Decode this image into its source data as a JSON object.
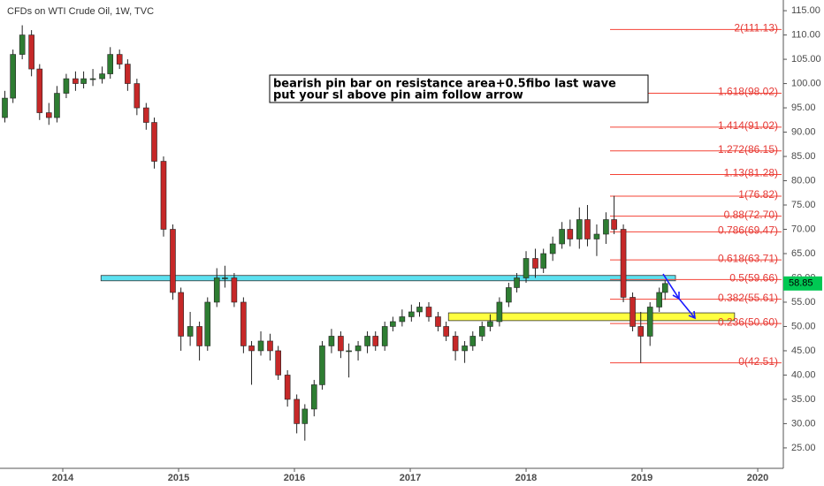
{
  "chart_data": {
    "type": "candlestick",
    "title": "CFDs on WTI Crude Oil, 1W, TVC",
    "annotation": [
      "bearish pin bar on resistance area+0.5fibo last wave",
      "put your sl above pin aim follow arrow"
    ],
    "up_color": "#2e7d32",
    "down_color": "#c62828",
    "last_color": "#00c853",
    "x": [
      2013.5,
      2013.57,
      2013.65,
      2013.73,
      2013.8,
      2013.88,
      2013.95,
      2014.03,
      2014.11,
      2014.18,
      2014.26,
      2014.34,
      2014.41,
      2014.49,
      2014.56,
      2014.64,
      2014.72,
      2014.79,
      2014.87,
      2014.95,
      2015.02,
      2015.1,
      2015.18,
      2015.25,
      2015.33,
      2015.4,
      2015.48,
      2015.56,
      2015.63,
      2015.71,
      2015.79,
      2015.86,
      2015.94,
      2016.02,
      2016.09,
      2016.17,
      2016.24,
      2016.32,
      2016.4,
      2016.47,
      2016.55,
      2016.63,
      2016.7,
      2016.78,
      2016.85,
      2016.93,
      2017.01,
      2017.08,
      2017.16,
      2017.24,
      2017.31,
      2017.39,
      2017.47,
      2017.54,
      2017.62,
      2017.69,
      2017.77,
      2017.85,
      2017.92,
      2018.0,
      2018.08,
      2018.15,
      2018.23,
      2018.31,
      2018.38,
      2018.46,
      2018.53,
      2018.61,
      2018.69,
      2018.76,
      2018.84,
      2018.92,
      2018.99,
      2019.07,
      2019.15,
      2019.2
    ],
    "open": [
      93,
      97,
      106,
      110,
      103,
      94,
      93,
      98,
      101,
      100,
      101,
      101,
      102,
      106,
      104,
      100,
      95,
      92,
      84,
      70,
      57,
      48,
      50,
      46,
      55,
      60,
      60,
      55,
      46,
      45,
      47,
      45,
      40,
      35,
      30,
      33,
      38,
      46,
      48,
      45,
      45,
      46,
      48,
      46,
      50,
      51,
      52,
      53,
      54,
      52,
      50,
      48,
      45,
      46,
      48,
      50,
      51,
      55,
      58,
      60,
      64,
      62,
      65,
      67,
      70,
      68,
      72,
      68,
      69,
      72,
      70,
      56,
      50,
      48,
      54,
      57
    ],
    "high": [
      98.5,
      107,
      112,
      111,
      104,
      96,
      99.5,
      102,
      102.5,
      102.5,
      103,
      103.5,
      107.5,
      107,
      105,
      101,
      96,
      93,
      85,
      71,
      58,
      53,
      51,
      56,
      62,
      62.5,
      61,
      56,
      47,
      49,
      48.5,
      46,
      41,
      36,
      34,
      39,
      47,
      49.5,
      49,
      46.5,
      47,
      49,
      49,
      51,
      52,
      53.5,
      54.5,
      55,
      55,
      53,
      51,
      49,
      47,
      49,
      51,
      52.5,
      56,
      59,
      61,
      65.5,
      66,
      66,
      68.5,
      71.5,
      72,
      74.5,
      75,
      71,
      73.5,
      76.9,
      71,
      57,
      53,
      55,
      58,
      59.5
    ],
    "low": [
      92,
      96,
      105,
      101.5,
      92.5,
      91.5,
      92,
      97,
      98.5,
      99,
      99.5,
      100,
      101,
      103,
      98.5,
      93.5,
      90.5,
      82.5,
      68.5,
      55.5,
      45,
      46,
      43,
      45,
      54,
      58,
      54,
      44.5,
      38,
      44,
      43,
      39,
      33.5,
      28,
      26.5,
      31.5,
      37,
      44.5,
      43.5,
      39.5,
      43,
      44.5,
      45,
      45,
      49,
      50,
      51,
      52,
      51,
      49,
      47,
      43,
      42.5,
      45,
      47,
      49,
      50,
      54,
      57,
      59,
      60,
      61,
      63.5,
      66,
      66.5,
      66,
      66.5,
      64.5,
      67,
      69,
      55,
      49,
      42.5,
      46,
      53,
      55.5
    ],
    "close": [
      97,
      106,
      110,
      103,
      94,
      93,
      98,
      101,
      100,
      101,
      101,
      102,
      106,
      104,
      100,
      95,
      92,
      84,
      70,
      57,
      48,
      50,
      46,
      55,
      60,
      60,
      55,
      46,
      45,
      47,
      45,
      40,
      35,
      30,
      33,
      38,
      46,
      48,
      45,
      45,
      46,
      48,
      46,
      50,
      51,
      52,
      53,
      54,
      52,
      50,
      48,
      45,
      46,
      48,
      50,
      51,
      55,
      58,
      60,
      64,
      62,
      65,
      67,
      70,
      68,
      72,
      68,
      69,
      72,
      70,
      56,
      50,
      48,
      54,
      57,
      58.85
    ],
    "fib_levels": [
      {
        "value": 111.13,
        "label": "2(111.13)"
      },
      {
        "value": 98.02,
        "label": "1.618(98.02)"
      },
      {
        "value": 91.02,
        "label": "1.414(91.02)"
      },
      {
        "value": 86.15,
        "label": "1.272(86.15)"
      },
      {
        "value": 81.28,
        "label": "1.13(81.28)"
      },
      {
        "value": 76.82,
        "label": "1(76.82)"
      },
      {
        "value": 72.7,
        "label": "0.88(72.70)"
      },
      {
        "value": 69.47,
        "label": "0.786(69.47)"
      },
      {
        "value": 63.71,
        "label": "0.618(63.71)"
      },
      {
        "value": 59.66,
        "label": "0.5(59.66)"
      },
      {
        "value": 55.61,
        "label": "0.382(55.61)"
      },
      {
        "value": 50.6,
        "label": "0.236(50.60)"
      },
      {
        "value": 42.51,
        "label": "0(42.51)"
      }
    ],
    "fib_color": "#f44336",
    "zones": [
      {
        "x": [
          2014.33,
          2019.29
        ],
        "y": [
          59.4,
          60.5
        ],
        "color": "#5ce1f0"
      },
      {
        "x": [
          2017.33,
          2019.8
        ],
        "y": [
          51.2,
          52.8
        ],
        "color": "#ffff40"
      }
    ],
    "xlim": [
      2013.458,
      2020.221
    ],
    "xticks": [
      2014,
      2015,
      2016,
      2017,
      2018,
      2019,
      2020
    ],
    "ylim": [
      20.8,
      117.2
    ],
    "yticks": [
      {
        "value": 115,
        "label": "115.00"
      },
      {
        "value": 110,
        "label": "110.00"
      },
      {
        "value": 105,
        "label": "105.00"
      },
      {
        "value": 100,
        "label": "100.00"
      },
      {
        "value": 95,
        "label": "95.00"
      },
      {
        "value": 90,
        "label": "90.00"
      },
      {
        "value": 85,
        "label": "85.00"
      },
      {
        "value": 80,
        "label": "80.00"
      },
      {
        "value": 75,
        "label": "75.00"
      },
      {
        "value": 70,
        "label": "70.00"
      },
      {
        "value": 65,
        "label": "65.00"
      },
      {
        "value": 60,
        "label": "60.00"
      },
      {
        "value": 55,
        "label": "55.00"
      },
      {
        "value": 50,
        "label": "50.00"
      },
      {
        "value": 45,
        "label": "45.00"
      },
      {
        "value": 40,
        "label": "40.00"
      },
      {
        "value": 35,
        "label": "35.00"
      },
      {
        "value": 30,
        "label": "30.00"
      },
      {
        "value": 25,
        "label": "25.00"
      }
    ]
  }
}
